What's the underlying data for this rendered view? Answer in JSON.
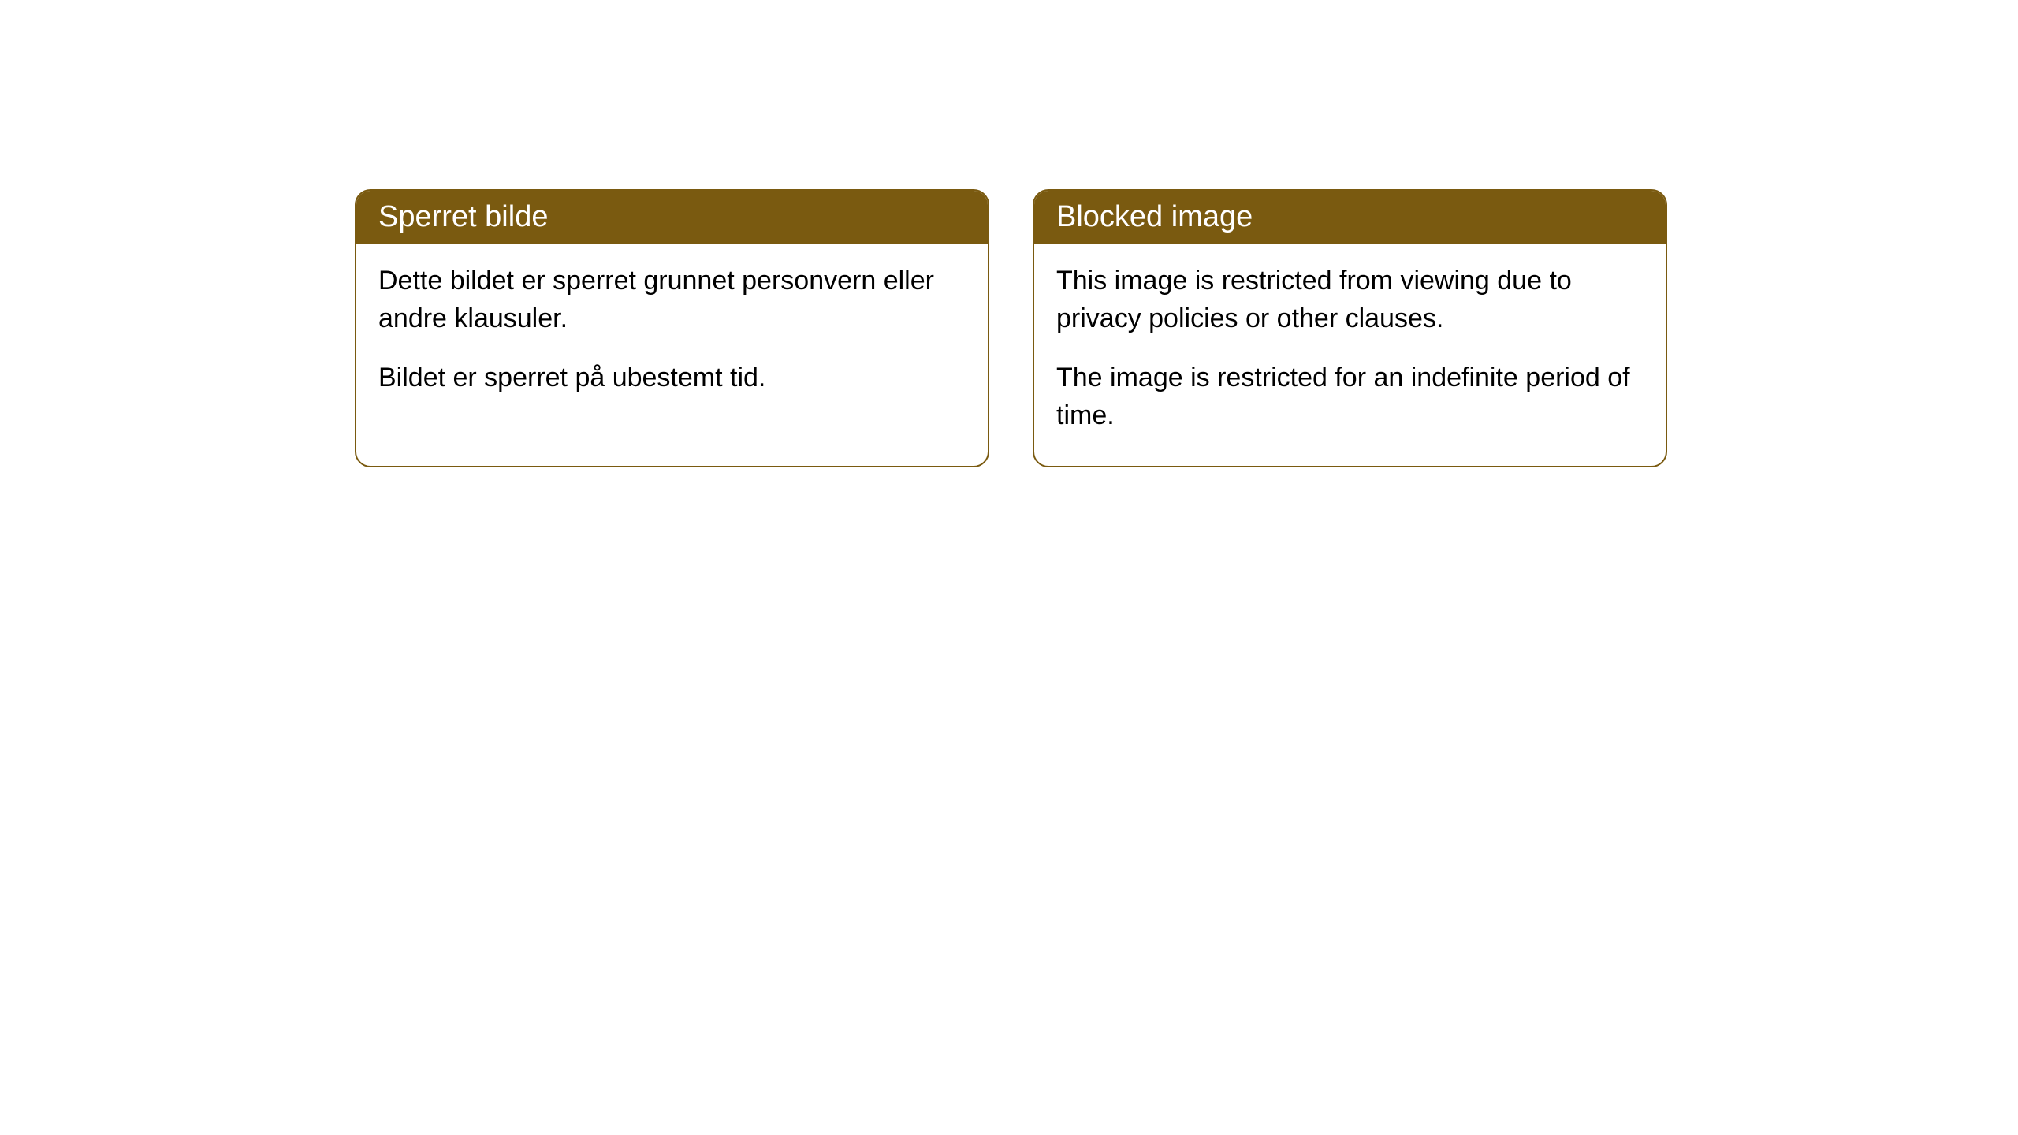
{
  "cards": [
    {
      "header": "Sperret bilde",
      "paragraph1": "Dette bildet er sperret grunnet personvern eller andre klausuler.",
      "paragraph2": "Bildet er sperret på ubestemt tid."
    },
    {
      "header": "Blocked image",
      "paragraph1": "This image is restricted from viewing due to privacy policies or other clauses.",
      "paragraph2": "The image is restricted for an indefinite period of time."
    }
  ],
  "styling": {
    "card_border_color": "#7a5a10",
    "header_background_color": "#7a5a10",
    "header_text_color": "#ffffff",
    "body_background_color": "#ffffff",
    "body_text_color": "#000000",
    "page_background_color": "#ffffff",
    "border_radius": 20,
    "header_font_size": 38,
    "body_font_size": 34
  }
}
